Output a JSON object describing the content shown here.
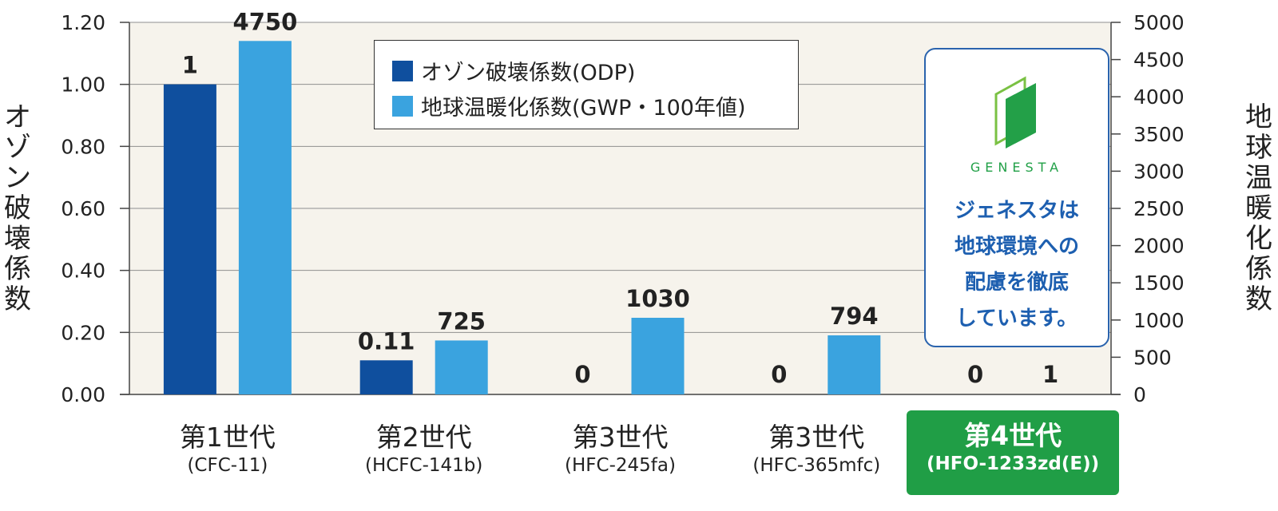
{
  "chart_data": {
    "type": "bar",
    "categories": [
      {
        "name": "第1世代",
        "sub": "(CFC-11)",
        "highlight": false
      },
      {
        "name": "第2世代",
        "sub": "(HCFC-141b)",
        "highlight": false
      },
      {
        "name": "第3世代",
        "sub": "(HFC-245fa)",
        "highlight": false
      },
      {
        "name": "第3世代",
        "sub": "(HFC-365mfc)",
        "highlight": false
      },
      {
        "name": "第4世代",
        "sub": "(HFO-1233zd(E))",
        "highlight": true
      }
    ],
    "series": [
      {
        "name": "オゾン破壊係数(ODP)",
        "axis": "left",
        "color": "#0f4f9e",
        "values": [
          1,
          0.11,
          0,
          0,
          0
        ],
        "labels": [
          "1",
          "0.11",
          "0",
          "0",
          "0"
        ]
      },
      {
        "name": "地球温暖化係数(GWP・100年値)",
        "axis": "right",
        "color": "#3aa3df",
        "values": [
          4750,
          725,
          1030,
          794,
          1
        ],
        "labels": [
          "4750",
          "725",
          "1030",
          "794",
          "1"
        ]
      }
    ],
    "ylabel_left": "オゾン破壊係数",
    "ylabel_right": "地球温暖化係数",
    "ylim_left": [
      0,
      1.2
    ],
    "ylim_right": [
      0,
      5000
    ],
    "yticks_left": [
      "0.00",
      "0.20",
      "0.40",
      "0.60",
      "0.80",
      "1.00",
      "1.20"
    ],
    "yticks_right": [
      "0",
      "500",
      "1000",
      "1500",
      "2000",
      "2500",
      "3000",
      "3500",
      "4000",
      "4500",
      "5000"
    ],
    "grid": true,
    "legend_position": "top-center",
    "plot_background": "#f6f3ec"
  },
  "badge": {
    "brand": "GENESTA",
    "lines": [
      "ジェネスタは",
      "地球環境への",
      "配慮を徹底",
      "しています。"
    ]
  }
}
